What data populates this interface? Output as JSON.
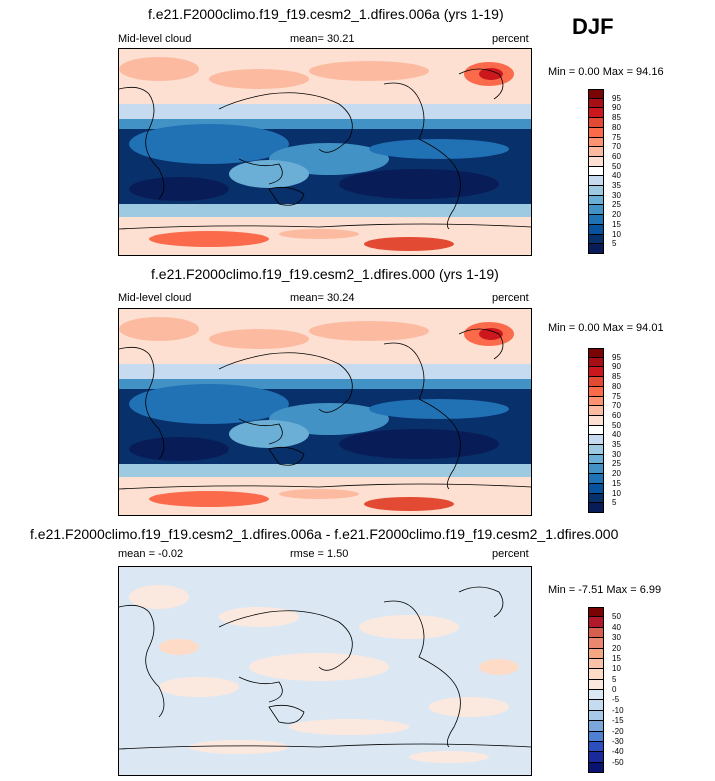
{
  "season": "DJF",
  "panels": [
    {
      "title": "f.e21.F2000climo.f19_f19.cesm2_1.dfires.006a (yrs 1-19)",
      "left_label": "Mid-level cloud",
      "center_label": "mean=  30.21",
      "right_label": "percent",
      "minmax": "Min =   0.00 Max =  94.16",
      "colorbar": {
        "labels": [
          "95",
          "90",
          "85",
          "80",
          "75",
          "70",
          "60",
          "50",
          "40",
          "35",
          "30",
          "25",
          "20",
          "15",
          "10",
          "5"
        ],
        "colors": [
          "#7a0403",
          "#a50f15",
          "#cb181d",
          "#e34a33",
          "#fb6a4a",
          "#fc9272",
          "#fcbba1",
          "#fde0d2",
          "#ffffff",
          "#c6dbef",
          "#9ecae1",
          "#6baed6",
          "#4292c6",
          "#2171b5",
          "#08519c",
          "#08306b",
          "#081d58"
        ]
      }
    },
    {
      "title": "f.e21.F2000climo.f19_f19.cesm2_1.dfires.000 (yrs 1-19)",
      "left_label": "Mid-level cloud",
      "center_label": "mean=  30.24",
      "right_label": "percent",
      "minmax": "Min =   0.00 Max =  94.01",
      "colorbar": {
        "labels": [
          "95",
          "90",
          "85",
          "80",
          "75",
          "70",
          "60",
          "50",
          "40",
          "35",
          "30",
          "25",
          "20",
          "15",
          "10",
          "5"
        ],
        "colors": [
          "#7a0403",
          "#a50f15",
          "#cb181d",
          "#e34a33",
          "#fb6a4a",
          "#fc9272",
          "#fcbba1",
          "#fde0d2",
          "#ffffff",
          "#c6dbef",
          "#9ecae1",
          "#6baed6",
          "#4292c6",
          "#2171b5",
          "#08519c",
          "#08306b",
          "#081d58"
        ]
      }
    },
    {
      "title": "f.e21.F2000climo.f19_f19.cesm2_1.dfires.006a - f.e21.F2000climo.f19_f19.cesm2_1.dfires.000",
      "left_label": "mean =  -0.02",
      "center_label": "rmse =   1.50",
      "right_label": "percent",
      "minmax": "Min =  -7.51 Max =   6.99",
      "colorbar": {
        "labels": [
          "50",
          "40",
          "30",
          "20",
          "15",
          "10",
          "5",
          "0",
          "-5",
          "-10",
          "-15",
          "-20",
          "-30",
          "-40",
          "-50"
        ],
        "colors": [
          "#7a0403",
          "#b2182b",
          "#d6604d",
          "#e9876f",
          "#f4a582",
          "#f8c3a8",
          "#fddbc7",
          "#fbe9df",
          "#dbe8f4",
          "#c5dbef",
          "#a8c8e8",
          "#7ba6dc",
          "#4f7fd0",
          "#2c4fbf",
          "#1a2a9a",
          "#0a1470"
        ]
      }
    }
  ]
}
